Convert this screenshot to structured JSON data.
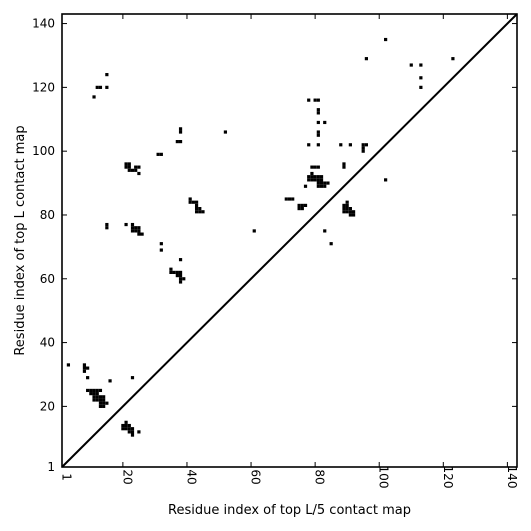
{
  "chart_data": {
    "type": "scatter",
    "title": "",
    "xlabel": "Residue index of top L/5 contact map",
    "ylabel": "Residue index of top L contact map",
    "xlim": [
      1,
      143
    ],
    "ylim": [
      1,
      143
    ],
    "xticks": [
      1,
      20,
      40,
      60,
      80,
      100,
      120,
      140
    ],
    "yticks": [
      1,
      20,
      40,
      60,
      80,
      100,
      120,
      140
    ],
    "diagonal": true,
    "grid": false,
    "colors": {
      "points": "#000000",
      "axes": "#000000",
      "background": "#ffffff"
    },
    "series": [
      {
        "points": [
          [
            3,
            33
          ],
          [
            8,
            33
          ],
          [
            8,
            32
          ],
          [
            8,
            31
          ],
          [
            9,
            32
          ],
          [
            9,
            29
          ],
          [
            9,
            25
          ],
          [
            10,
            25
          ],
          [
            11,
            25
          ],
          [
            12,
            25
          ],
          [
            13,
            25
          ],
          [
            10,
            24
          ],
          [
            11,
            24
          ],
          [
            12,
            24
          ],
          [
            11,
            23
          ],
          [
            12,
            23
          ],
          [
            13,
            23
          ],
          [
            14,
            23
          ],
          [
            11,
            22
          ],
          [
            12,
            22
          ],
          [
            13,
            22
          ],
          [
            14,
            22
          ],
          [
            13,
            21
          ],
          [
            14,
            21
          ],
          [
            15,
            21
          ],
          [
            13,
            20
          ],
          [
            14,
            20
          ],
          [
            16,
            28
          ],
          [
            21,
            15
          ],
          [
            20,
            14
          ],
          [
            21,
            14
          ],
          [
            22,
            14
          ],
          [
            20,
            13
          ],
          [
            21,
            13
          ],
          [
            22,
            13
          ],
          [
            23,
            13
          ],
          [
            22,
            12
          ],
          [
            23,
            12
          ],
          [
            23,
            11
          ],
          [
            25,
            12
          ],
          [
            23,
            29
          ],
          [
            11,
            117
          ],
          [
            12,
            120
          ],
          [
            13,
            120
          ],
          [
            15,
            120
          ],
          [
            15,
            124
          ],
          [
            15,
            77
          ],
          [
            15,
            76
          ],
          [
            21,
            96
          ],
          [
            22,
            96
          ],
          [
            21,
            95
          ],
          [
            22,
            95
          ],
          [
            22,
            94
          ],
          [
            23,
            94
          ],
          [
            24,
            95
          ],
          [
            25,
            95
          ],
          [
            24,
            94
          ],
          [
            25,
            93
          ],
          [
            21,
            77
          ],
          [
            23,
            77
          ],
          [
            23,
            76
          ],
          [
            24,
            76
          ],
          [
            25,
            76
          ],
          [
            23,
            75
          ],
          [
            24,
            75
          ],
          [
            25,
            75
          ],
          [
            25,
            74
          ],
          [
            26,
            74
          ],
          [
            31,
            99
          ],
          [
            32,
            99
          ],
          [
            32,
            71
          ],
          [
            32,
            69
          ],
          [
            35,
            63
          ],
          [
            35,
            62
          ],
          [
            36,
            62
          ],
          [
            37,
            62
          ],
          [
            38,
            62
          ],
          [
            37,
            61
          ],
          [
            38,
            61
          ],
          [
            38,
            60
          ],
          [
            39,
            60
          ],
          [
            38,
            59
          ],
          [
            38,
            66
          ],
          [
            37,
            103
          ],
          [
            38,
            103
          ],
          [
            38,
            107
          ],
          [
            38,
            106
          ],
          [
            41,
            85
          ],
          [
            41,
            84
          ],
          [
            42,
            84
          ],
          [
            43,
            84
          ],
          [
            43,
            83
          ],
          [
            43,
            82
          ],
          [
            44,
            82
          ],
          [
            43,
            81
          ],
          [
            44,
            81
          ],
          [
            45,
            81
          ],
          [
            52,
            106
          ],
          [
            61,
            75
          ],
          [
            71,
            85
          ],
          [
            72,
            85
          ],
          [
            73,
            85
          ],
          [
            75,
            83
          ],
          [
            76,
            83
          ],
          [
            77,
            83
          ],
          [
            75,
            82
          ],
          [
            76,
            82
          ],
          [
            77,
            89
          ],
          [
            78,
            102
          ],
          [
            78,
            116
          ],
          [
            80,
            116
          ],
          [
            81,
            116
          ],
          [
            81,
            113
          ],
          [
            81,
            112
          ],
          [
            81,
            109
          ],
          [
            83,
            109
          ],
          [
            81,
            106
          ],
          [
            81,
            105
          ],
          [
            81,
            102
          ],
          [
            79,
            95
          ],
          [
            80,
            95
          ],
          [
            81,
            95
          ],
          [
            78,
            92
          ],
          [
            79,
            92
          ],
          [
            80,
            92
          ],
          [
            78,
            91
          ],
          [
            79,
            91
          ],
          [
            80,
            91
          ],
          [
            81,
            91
          ],
          [
            82,
            91
          ],
          [
            79,
            93
          ],
          [
            81,
            92
          ],
          [
            82,
            92
          ],
          [
            81,
            90
          ],
          [
            82,
            90
          ],
          [
            83,
            90
          ],
          [
            84,
            90
          ],
          [
            81,
            89
          ],
          [
            82,
            89
          ],
          [
            83,
            89
          ],
          [
            83,
            75
          ],
          [
            85,
            71
          ],
          [
            88,
            102
          ],
          [
            89,
            96
          ],
          [
            89,
            95
          ],
          [
            90,
            84
          ],
          [
            89,
            83
          ],
          [
            90,
            83
          ],
          [
            89,
            82
          ],
          [
            90,
            82
          ],
          [
            91,
            82
          ],
          [
            89,
            81
          ],
          [
            90,
            81
          ],
          [
            91,
            81
          ],
          [
            92,
            81
          ],
          [
            91,
            80
          ],
          [
            92,
            80
          ],
          [
            91,
            102
          ],
          [
            95,
            102
          ],
          [
            96,
            102
          ],
          [
            95,
            101
          ],
          [
            95,
            100
          ],
          [
            96,
            129
          ],
          [
            102,
            135
          ],
          [
            102,
            91
          ],
          [
            110,
            127
          ],
          [
            113,
            127
          ],
          [
            113,
            123
          ],
          [
            113,
            120
          ],
          [
            123,
            129
          ]
        ]
      }
    ]
  }
}
